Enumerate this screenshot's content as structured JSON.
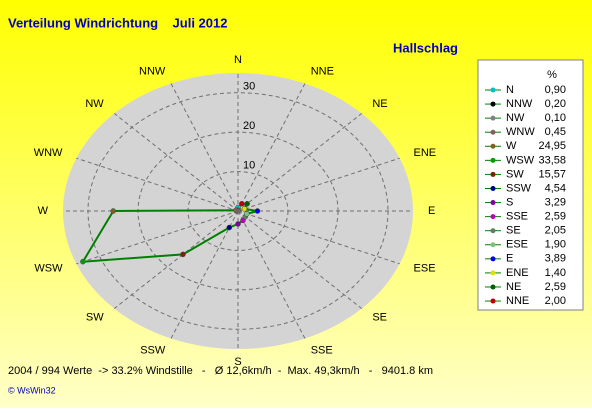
{
  "chart_data": {
    "type": "radar",
    "title": "Verteilung Windrichtung    Juli 2012",
    "subtitle": "Hallschlag",
    "legend_unit": "%",
    "categories": [
      "N",
      "NNW",
      "NW",
      "WNW",
      "W",
      "WSW",
      "SW",
      "SSW",
      "S",
      "SSE",
      "SE",
      "ESE",
      "E",
      "ENE",
      "NE",
      "NNE"
    ],
    "values": [
      0.9,
      0.2,
      0.1,
      0.45,
      24.95,
      33.58,
      15.57,
      4.54,
      3.29,
      2.59,
      2.05,
      1.9,
      3.89,
      1.4,
      2.59,
      2.0
    ],
    "value_labels": [
      "0,90",
      "0,20",
      "0,10",
      "0,45",
      "24,95",
      "33,58",
      "15,57",
      "4,54",
      "3,29",
      "2,59",
      "2,05",
      "1,90",
      "3,89",
      "1,40",
      "2,59",
      "2,00"
    ],
    "point_colors": [
      "#00c0c0",
      "#000000",
      "#808080",
      "#806060",
      "#806020",
      "#00a000",
      "#802000",
      "#000080",
      "#8000a0",
      "#c000c0",
      "#608060",
      "#80c080",
      "#0000ff",
      "#e0e000",
      "#006000",
      "#c00000"
    ],
    "color": "#008000",
    "rlim": [
      0,
      35
    ],
    "rticks": [
      10,
      20,
      30
    ],
    "grid": true,
    "footer": "2004 / 994 Werte  -> 33.2% Windstille   -   Ø 12,6km/h  -  Max. 49,3km/h   -   9401.8 km",
    "copyright": "© WsWin32"
  }
}
